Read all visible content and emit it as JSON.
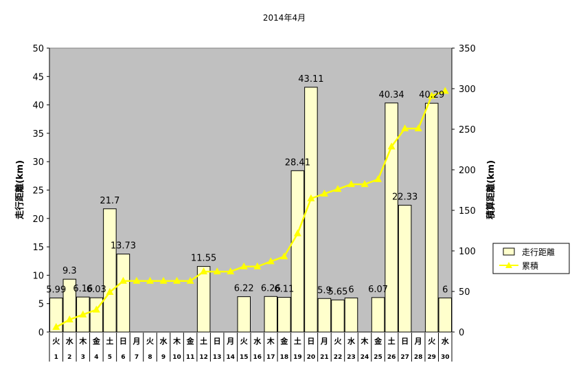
{
  "chart_data": {
    "type": "bar+line",
    "title": "2014年4月",
    "ylabel_left": "走行距離(km)",
    "ylabel_right": "積算距離(km)",
    "ylim_left": [
      0,
      50
    ],
    "yticks_left": [
      "0",
      "5",
      "10",
      "15",
      "20",
      "25",
      "30",
      "35",
      "40",
      "45",
      "50"
    ],
    "ylim_right": [
      0,
      350
    ],
    "yticks_right": [
      "0",
      "50",
      "100",
      "150",
      "200",
      "250",
      "300",
      "350"
    ],
    "categories_day": [
      "1",
      "2",
      "3",
      "4",
      "5",
      "6",
      "7",
      "8",
      "9",
      "10",
      "11",
      "12",
      "13",
      "14",
      "15",
      "16",
      "17",
      "18",
      "19",
      "20",
      "21",
      "22",
      "23",
      "24",
      "25",
      "26",
      "27",
      "28",
      "29",
      "30"
    ],
    "categories_weekday": [
      "火",
      "水",
      "木",
      "金",
      "土",
      "日",
      "月",
      "火",
      "水",
      "木",
      "金",
      "土",
      "日",
      "月",
      "火",
      "水",
      "木",
      "金",
      "土",
      "日",
      "月",
      "火",
      "水",
      "木",
      "金",
      "土",
      "日",
      "月",
      "火",
      "水"
    ],
    "series": [
      {
        "name": "走行距離",
        "type": "bar",
        "axis": "left",
        "color": "#ffffcc",
        "values": [
          5.99,
          9.3,
          6.16,
          6.03,
          21.7,
          13.73,
          0,
          0,
          0,
          0,
          0,
          11.55,
          0,
          0,
          6.22,
          0,
          6.26,
          6.11,
          28.41,
          43.11,
          5.9,
          5.65,
          6,
          0,
          6.07,
          40.34,
          22.33,
          0,
          40.29,
          6
        ],
        "labels": [
          "5.99",
          "9.3",
          "6.16",
          "6.03",
          "21.7",
          "13.73",
          "",
          "",
          "",
          "",
          "",
          "11.55",
          "",
          "",
          "6.22",
          "",
          "6.26",
          "6.11",
          "28.41",
          "43.11",
          "5.9",
          "5.65",
          "6",
          "",
          "6.07",
          "40.34",
          "22.33",
          "",
          "40.29",
          "6"
        ]
      },
      {
        "name": "累積",
        "type": "line",
        "axis": "right",
        "color": "#ffff00",
        "values": [
          5.99,
          15.29,
          21.45,
          27.48,
          49.18,
          62.91,
          62.91,
          62.91,
          62.91,
          62.91,
          62.91,
          74.46,
          74.46,
          74.46,
          80.68,
          80.68,
          86.94,
          93.05,
          121.46,
          164.57,
          170.47,
          176.12,
          182.12,
          182.12,
          188.19,
          228.53,
          250.86,
          250.86,
          291.15,
          297.15
        ]
      }
    ],
    "plot_bg": "#c0c0c0",
    "legend_position": "right"
  }
}
